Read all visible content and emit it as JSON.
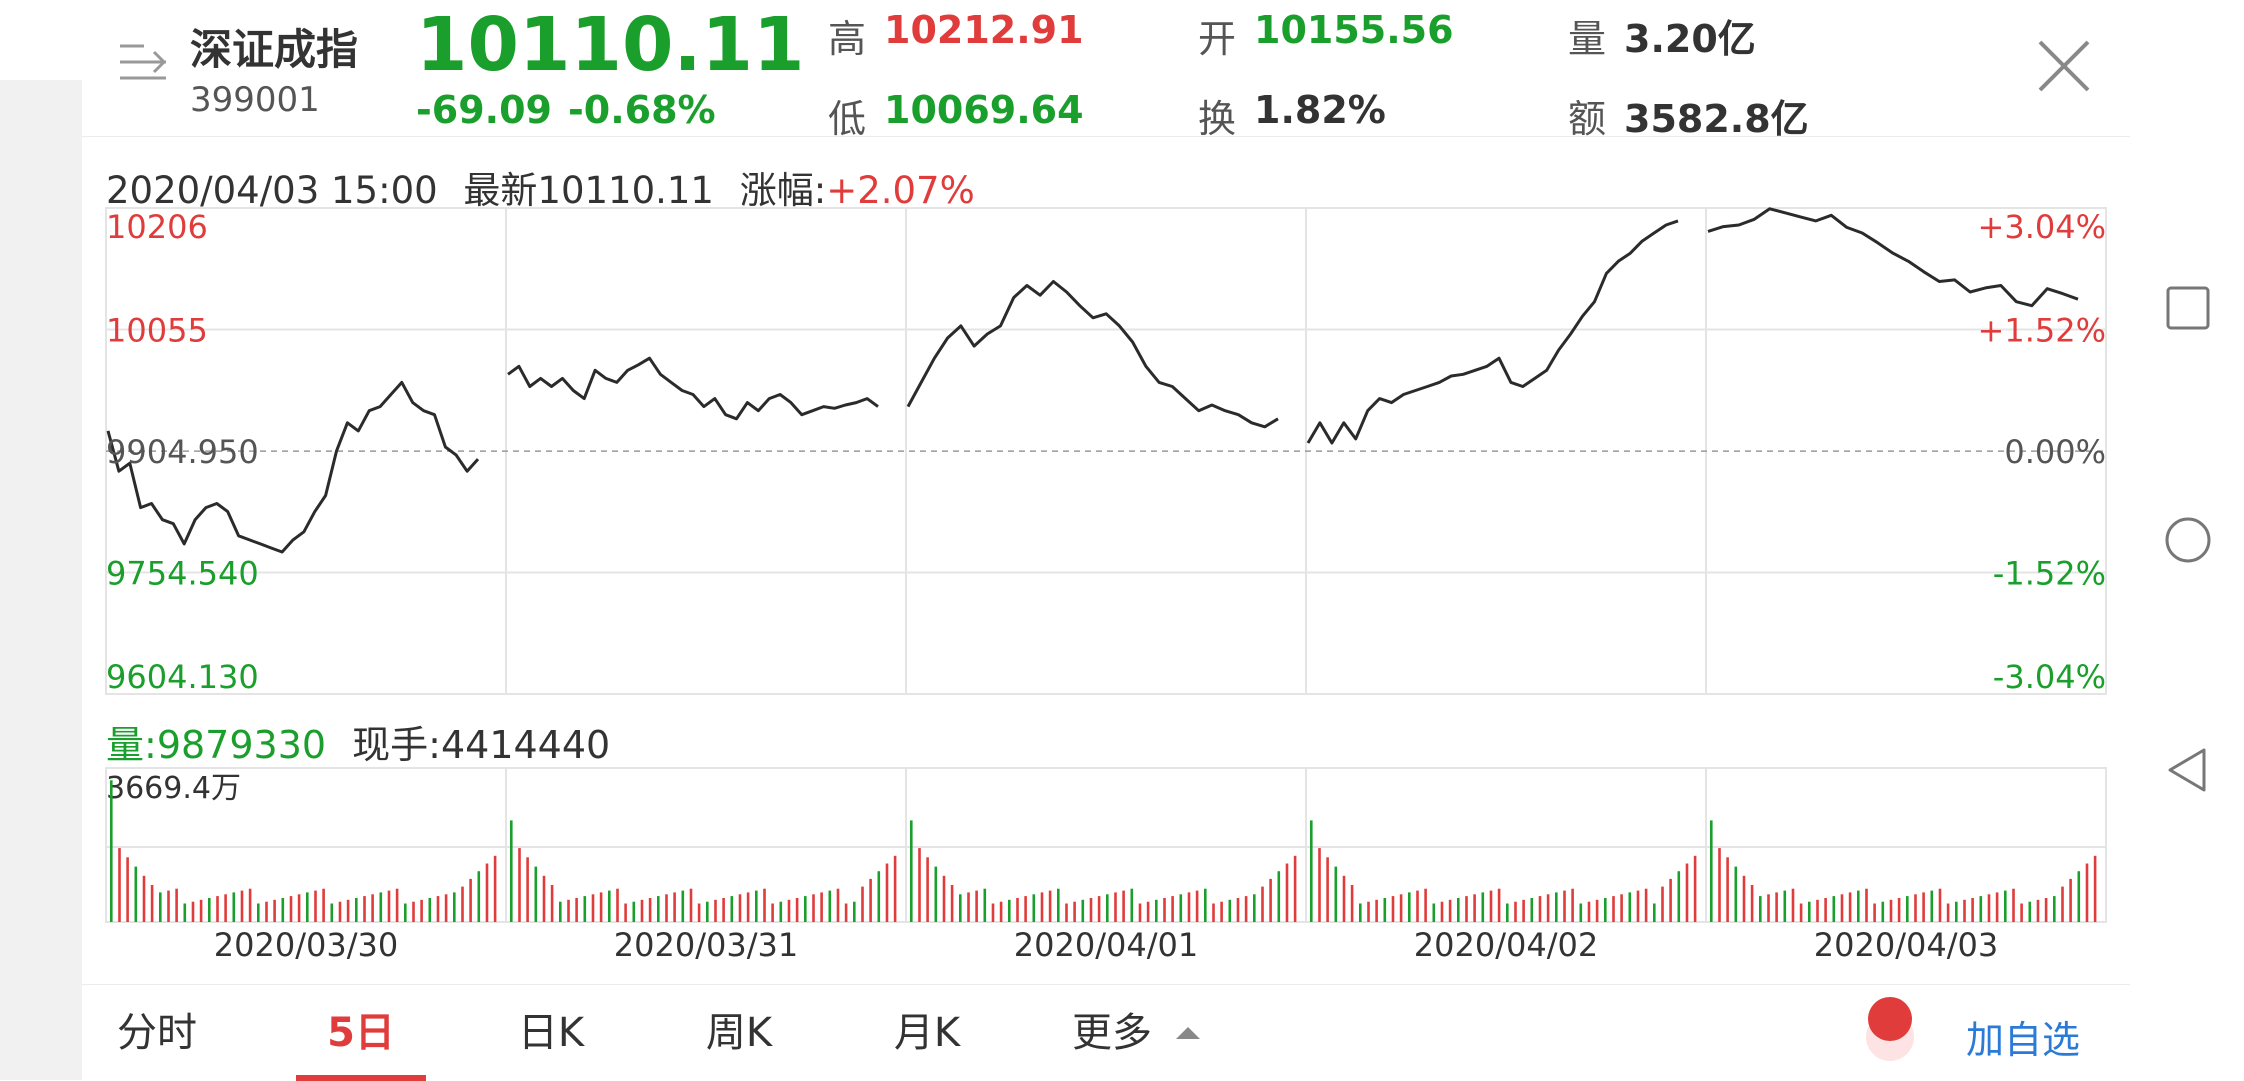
{
  "header": {
    "menu_icon": "menu-icon",
    "index_name": "深证成指",
    "index_code": "399001",
    "price": "10110.11",
    "change": "-69.09",
    "change_pct": "-0.68%",
    "high_label": "高",
    "high_value": "10212.91",
    "low_label": "低",
    "low_value": "10069.64",
    "open_label": "开",
    "open_value": "10155.56",
    "turnover_label": "换",
    "turnover_value": "1.82%",
    "volume_label": "量",
    "volume_value": "3.20亿",
    "amount_label": "额",
    "amount_value": "3582.8亿",
    "close_icon": "close-icon"
  },
  "info": {
    "datetime": "2020/04/03 15:00",
    "latest_label": "最新",
    "latest_value": "10110.11",
    "change_label": "涨幅:",
    "change_value": "+2.07%"
  },
  "volume_info": {
    "volume_label": "量:",
    "volume_value": "9879330",
    "hand_label": "现手:",
    "hand_value": "4414440",
    "max_label": "3669.4万"
  },
  "tabs": [
    {
      "label": "分时",
      "active": false
    },
    {
      "label": "5日",
      "active": true
    },
    {
      "label": "日K",
      "active": false
    },
    {
      "label": "周K",
      "active": false
    },
    {
      "label": "月K",
      "active": false
    },
    {
      "label": "更多",
      "active": false
    }
  ],
  "add_watchlist": "加自选",
  "colors": {
    "up": "#e03c3c",
    "down": "#1a9e2c",
    "active_tab": "#e03c3c",
    "link": "#2b7bd6"
  },
  "chart_data": {
    "type": "line",
    "days": [
      "2020/03/30",
      "2020/03/31",
      "2020/04/01",
      "2020/04/02",
      "2020/04/03"
    ],
    "y_ticks_left": [
      "10206",
      "10055",
      "9904.950",
      "9754.540",
      "9604.130"
    ],
    "y_ticks_right": [
      "+3.04%",
      "+1.52%",
      "0.00%",
      "-1.52%",
      "-3.04%"
    ],
    "reference": 9904.95,
    "ylim": [
      9604.13,
      10206
    ],
    "series": [
      {
        "values": [
          9930,
          9880,
          9890,
          9835,
          9840,
          9820,
          9815,
          9790,
          9820,
          9835,
          9840,
          9830,
          9800,
          9795,
          9790,
          9785,
          9780,
          9795,
          9805,
          9830,
          9850,
          9905,
          9940,
          9930,
          9955,
          9960,
          9975,
          9990,
          9965,
          9955,
          9950,
          9910,
          9900,
          9880,
          9895
        ]
      },
      {
        "values": [
          10000,
          10010,
          9985,
          9995,
          9985,
          9995,
          9980,
          9970,
          10005,
          9995,
          9990,
          10005,
          10012,
          10020,
          10000,
          9990,
          9980,
          9975,
          9960,
          9970,
          9950,
          9945,
          9965,
          9955,
          9970,
          9975,
          9965,
          9950,
          9955,
          9960,
          9958,
          9962,
          9965,
          9970,
          9960
        ]
      },
      {
        "values": [
          9960,
          9990,
          10020,
          10045,
          10060,
          10035,
          10050,
          10060,
          10095,
          10110,
          10098,
          10115,
          10102,
          10085,
          10070,
          10075,
          10060,
          10040,
          10010,
          9990,
          9985,
          9970,
          9955,
          9962,
          9955,
          9950,
          9940,
          9935,
          9945
        ]
      },
      {
        "values": [
          9915,
          9940,
          9915,
          9940,
          9920,
          9955,
          9970,
          9965,
          9975,
          9980,
          9985,
          9990,
          9998,
          10000,
          10005,
          10010,
          10020,
          9990,
          9985,
          9995,
          10005,
          10030,
          10050,
          10072,
          10090,
          10125,
          10140,
          10150,
          10165,
          10175,
          10185,
          10190
        ]
      },
      {
        "values": [
          10177,
          10183,
          10185,
          10192,
          10205,
          10200,
          10195,
          10190,
          10197,
          10182,
          10175,
          10163,
          10150,
          10140,
          10127,
          10115,
          10117,
          10102,
          10107,
          10110,
          10090,
          10085,
          10106,
          10100,
          10093
        ]
      }
    ]
  }
}
